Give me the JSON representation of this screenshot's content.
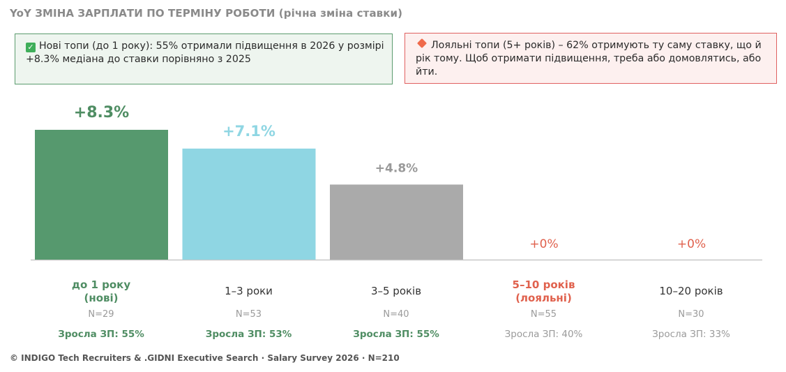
{
  "title": "YoY ЗМІНА ЗАРПЛАТИ ПО ТЕРМІНУ РОБОТИ (річна зміна ставки)",
  "callouts": {
    "green": {
      "icon": "check-icon",
      "text": "Нові топи (до 1 року): 55% отримали підвищення в 2026 у розмірі +8.3% медіана до ставки порівняно з 2025",
      "color": "#5b9b6e"
    },
    "red": {
      "icon": "diamond-icon",
      "text": "Лояльні топи (5+ років) – 62% отримують ту саму ставку, що й рік тому. Щоб отримати підвищення, треба або домовлятись, або йти.",
      "color": "#e06060"
    }
  },
  "chart_data": {
    "type": "bar",
    "categories": [
      "до 1 року\n(нові)",
      "1–3 роки",
      "3–5 років",
      "5–10 років\n(лояльні)",
      "10–20 років"
    ],
    "values": [
      8.3,
      7.1,
      4.8,
      0,
      0
    ],
    "value_labels": [
      "+8.3%",
      "+7.1%",
      "+4.8%",
      "+0%",
      "+0%"
    ],
    "bar_colors": [
      "#56996e",
      "#8fd6e3",
      "#aaaaaa",
      "#e8e8e8",
      "#e8e8e8"
    ],
    "value_label_colors": [
      "#4f8d63",
      "#8fd6e3",
      "#999999",
      "#e0614d",
      "#e0614d"
    ],
    "category_colors": [
      "#4f8d63",
      "#333333",
      "#333333",
      "#e0614d",
      "#333333"
    ],
    "category_bold": [
      true,
      false,
      false,
      true,
      false
    ],
    "counts": [
      "N=29",
      "N=53",
      "N=40",
      "N=55",
      "N=30"
    ],
    "growth": [
      "Зросла ЗП: 55%",
      "Зросла ЗП: 53%",
      "Зросла ЗП: 55%",
      "Зросла ЗП: 40%",
      "Зросла ЗП: 33%"
    ],
    "growth_colors": [
      "#4f8d63",
      "#4f8d63",
      "#4f8d63",
      "#9a9a9a",
      "#9a9a9a"
    ],
    "growth_bold": [
      true,
      true,
      true,
      false,
      false
    ],
    "ylim": [
      0,
      8.3
    ],
    "grid": false,
    "xlabel": "",
    "ylabel": ""
  },
  "footer": "© INDIGO Tech Recruiters & .GIDNI Executive Search · Salary Survey 2026 · N=210"
}
